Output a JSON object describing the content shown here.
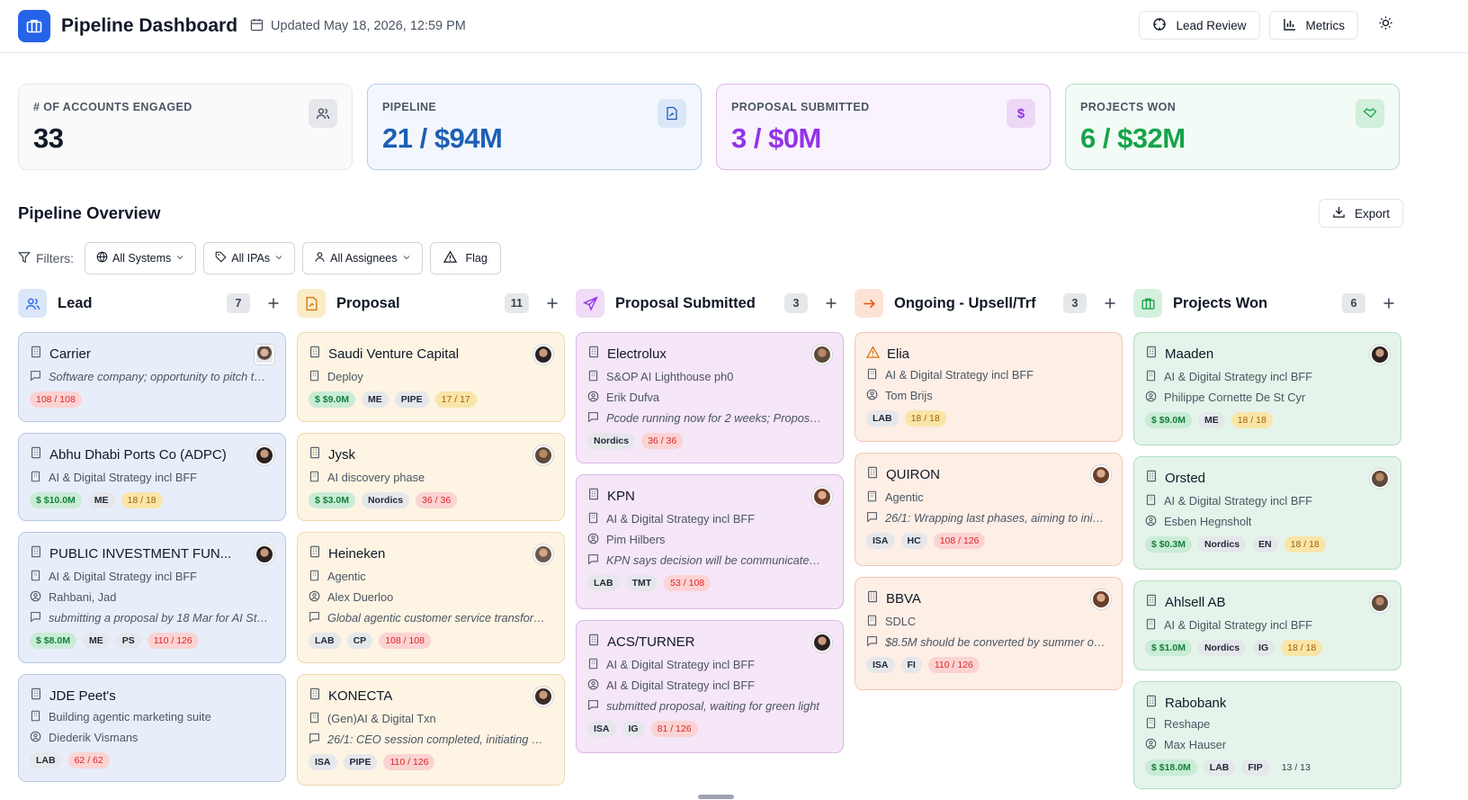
{
  "header": {
    "title": "Pipeline Dashboard",
    "updated": "Updated May 18, 2026, 12:59 PM",
    "lead_review": "Lead Review",
    "metrics": "Metrics"
  },
  "stats": [
    {
      "label": "# OF ACCOUNTS ENGAGED",
      "value": "33",
      "color": "#111827"
    },
    {
      "label": "PIPELINE",
      "value": "21 / $94M",
      "color": "#1d5fb4"
    },
    {
      "label": "PROPOSAL SUBMITTED",
      "value": "3 / $0M",
      "color": "#9333ea"
    },
    {
      "label": "PROJECTS WON",
      "value": "6 / $32M",
      "color": "#16a34a"
    }
  ],
  "overview": {
    "title": "Pipeline Overview",
    "export": "Export",
    "filters_label": "Filters:",
    "filters": [
      "All Systems",
      "All IPAs",
      "All Assignees"
    ],
    "flag": "Flag"
  },
  "columns": [
    {
      "title": "Lead",
      "count": "7"
    },
    {
      "title": "Proposal",
      "count": "11"
    },
    {
      "title": "Proposal Submitted",
      "count": "3"
    },
    {
      "title": "Ongoing - Upsell/Trf",
      "count": "3"
    },
    {
      "title": "Projects Won",
      "count": "6"
    }
  ],
  "cards": {
    "lead": [
      {
        "title": "Carrier",
        "lines": [
          "Software company; opportunity to pitch to..."
        ],
        "tags": [
          "108 / 108"
        ]
      },
      {
        "title": "Abhu Dhabi Ports Co (ADPC)",
        "lines": [
          "AI & Digital Strategy incl BFF"
        ],
        "tags": [
          "$ $10.0M",
          "ME",
          "18 / 18"
        ]
      },
      {
        "title": "PUBLIC INVESTMENT FUN...",
        "lines": [
          "AI & Digital Strategy incl BFF",
          "Rahbani, Jad",
          "submitting a proposal by 18 Mar for AI Str..."
        ],
        "tags": [
          "$ $8.0M",
          "ME",
          "PS",
          "110 / 126"
        ]
      },
      {
        "title": "JDE Peet's",
        "lines": [
          "Building agentic marketing suite",
          "Diederik Vismans"
        ],
        "tags": [
          "LAB",
          "62 / 62"
        ]
      }
    ],
    "proposal": [
      {
        "title": "Saudi Venture Capital",
        "lines": [
          "Deploy"
        ],
        "tags": [
          "$ $9.0M",
          "ME",
          "PIPE",
          "17 / 17"
        ]
      },
      {
        "title": "Jysk",
        "lines": [
          "AI discovery phase"
        ],
        "tags": [
          "$ $3.0M",
          "Nordics",
          "36 / 36"
        ]
      },
      {
        "title": "Heineken",
        "lines": [
          "Agentic",
          "Alex Duerloo",
          "Global agentic customer service transform..."
        ],
        "tags": [
          "LAB",
          "CP",
          "108 / 108"
        ]
      },
      {
        "title": "KONECTA",
        "lines": [
          "(Gen)AI & Digital Txn",
          "26/1: CEO session completed, initiating dis..."
        ],
        "tags": [
          "ISA",
          "PIPE",
          "110 / 126"
        ]
      }
    ],
    "submitted": [
      {
        "title": "Electrolux",
        "lines": [
          "S&OP AI Lighthouse ph0",
          "Erik Dufva",
          "Pcode running now for 2 weeks; Proposal ..."
        ],
        "tags": [
          "Nordics",
          "36 / 36"
        ]
      },
      {
        "title": "KPN",
        "lines": [
          "AI & Digital Strategy incl BFF",
          "Pim Hilbers",
          "KPN says decision will be communicated ..."
        ],
        "tags": [
          "LAB",
          "TMT",
          "53 / 108"
        ]
      },
      {
        "title": "ACS/TURNER",
        "lines": [
          "AI & Digital Strategy incl BFF",
          "AI & Digital Strategy incl BFF",
          "submitted proposal, waiting for green light"
        ],
        "tags": [
          "ISA",
          "IG",
          "81 / 126"
        ]
      }
    ],
    "ongoing": [
      {
        "title": "Elia",
        "lines": [
          "AI & Digital Strategy incl BFF",
          "Tom Brijs"
        ],
        "tags": [
          "LAB",
          "18 / 18"
        ]
      },
      {
        "title": "QUIRON",
        "lines": [
          "Agentic",
          "26/1: Wrapping last phases, aiming to initi..."
        ],
        "tags": [
          "ISA",
          "HC",
          "108 / 126"
        ]
      },
      {
        "title": "BBVA",
        "lines": [
          "SDLC",
          "$8.5M should be converted by summer on ..."
        ],
        "tags": [
          "ISA",
          "FI",
          "110 / 126"
        ]
      }
    ],
    "won": [
      {
        "title": "Maaden",
        "lines": [
          "AI & Digital Strategy incl BFF",
          "Philippe Cornette De St Cyr"
        ],
        "tags": [
          "$ $9.0M",
          "ME",
          "18 / 18"
        ]
      },
      {
        "title": "Orsted",
        "lines": [
          "AI & Digital Strategy incl BFF",
          "Esben Hegnsholt"
        ],
        "tags": [
          "$ $0.3M",
          "Nordics",
          "EN",
          "18 / 18"
        ]
      },
      {
        "title": "Ahlsell AB",
        "lines": [
          "AI & Digital Strategy incl BFF"
        ],
        "tags": [
          "$ $1.0M",
          "Nordics",
          "IG",
          "18 / 18"
        ]
      },
      {
        "title": "Rabobank",
        "lines": [
          "Reshape",
          "Max Hauser"
        ],
        "tags": [
          "$ $18.0M",
          "LAB",
          "FIP",
          "13 / 13"
        ]
      }
    ]
  },
  "icons": {
    "logo": "briefcase-icon",
    "updated": "calendar-icon",
    "lead_review": "crosshair-icon",
    "metrics": "bar-chart-icon",
    "theme": "sun-icon",
    "export": "download-icon",
    "filter": "funnel-icon",
    "flag": "warning-icon",
    "card": "building-icon",
    "note": "comment-icon",
    "person": "user-circle-icon"
  }
}
